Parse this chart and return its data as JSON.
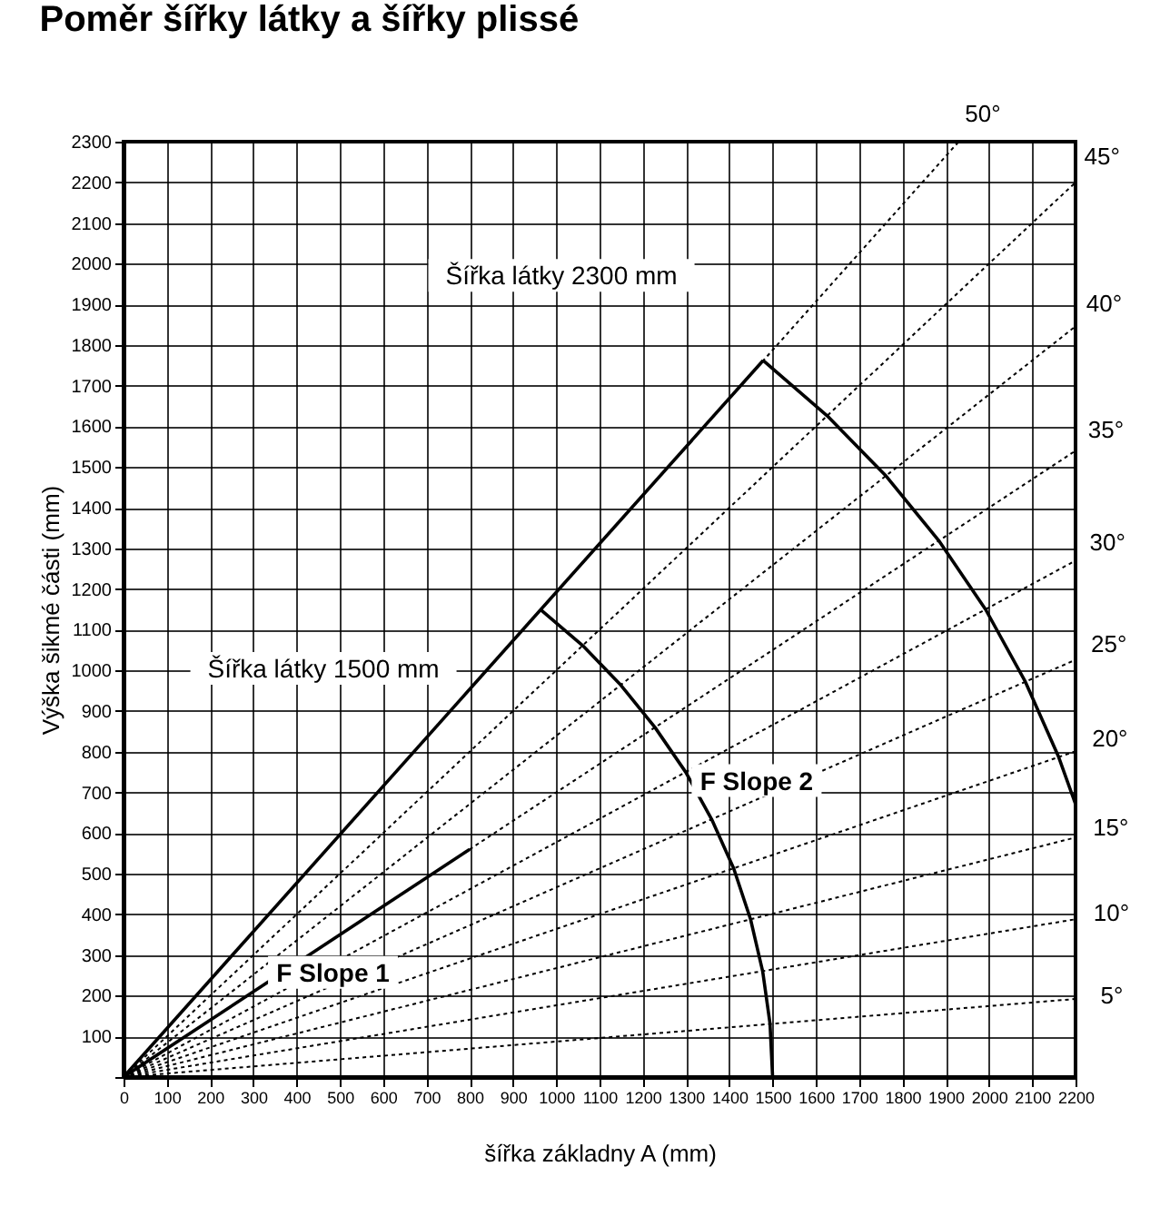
{
  "chart_data": {
    "type": "line",
    "title": "Poměr šířky látky a šířky plissé",
    "xlabel": "šířka základny A (mm)",
    "ylabel": "Výška šikmé části  (mm)",
    "xlim": [
      0,
      2200
    ],
    "ylim": [
      0,
      2300
    ],
    "xticks": [
      0,
      100,
      200,
      300,
      400,
      500,
      600,
      700,
      800,
      900,
      1000,
      1100,
      1200,
      1300,
      1400,
      1500,
      1600,
      1700,
      1800,
      1900,
      2000,
      2100,
      2200
    ],
    "yticks": [
      {
        "value": 0,
        "label": null
      },
      100,
      200,
      300,
      400,
      500,
      600,
      700,
      800,
      900,
      1000,
      1100,
      1200,
      1300,
      1400,
      1500,
      1600,
      1700,
      1800,
      1900,
      2000,
      2100,
      2200,
      2300
    ],
    "grid": true,
    "marker": "none",
    "series": [
      {
        "name": "5°",
        "color": "#000000",
        "line_style": "dotted",
        "x": [
          0,
          2200
        ],
        "values": [
          0,
          192
        ]
      },
      {
        "name": "10°",
        "color": "#000000",
        "line_style": "dotted",
        "x": [
          0,
          2200
        ],
        "values": [
          0,
          388
        ]
      },
      {
        "name": "15°",
        "color": "#000000",
        "line_style": "dotted",
        "x": [
          0,
          2200
        ],
        "values": [
          0,
          589
        ]
      },
      {
        "name": "20°",
        "color": "#000000",
        "line_style": "dotted",
        "x": [
          0,
          2200
        ],
        "values": [
          0,
          801
        ]
      },
      {
        "name": "25°",
        "color": "#000000",
        "line_style": "dotted",
        "x": [
          0,
          2200
        ],
        "values": [
          0,
          1026
        ]
      },
      {
        "name": "30°",
        "color": "#000000",
        "line_style": "dotted",
        "x": [
          0,
          2200
        ],
        "values": [
          0,
          1270
        ]
      },
      {
        "name": "35°",
        "color": "#000000",
        "line_style": "dotted",
        "x": [
          0,
          2200
        ],
        "values": [
          0,
          1540
        ]
      },
      {
        "name": "40°",
        "color": "#000000",
        "line_style": "dotted",
        "x": [
          0,
          2200
        ],
        "values": [
          0,
          1846
        ]
      },
      {
        "name": "45°",
        "color": "#000000",
        "line_style": "dotted",
        "x": [
          0,
          2200
        ],
        "values": [
          0,
          2200
        ]
      },
      {
        "name": "50°",
        "color": "#000000",
        "line_style": "dotted",
        "x": [
          0,
          1930
        ],
        "values": [
          0,
          2300
        ]
      },
      {
        "color": "#000000",
        "line_style": "solid",
        "x": [
          0,
          1478
        ],
        "values": [
          0,
          1762
        ]
      },
      {
        "color": "#000000",
        "line_style": "solid",
        "x": [
          0,
          800
        ],
        "values": [
          0,
          560
        ]
      },
      {
        "color": "#000000",
        "line_style": "solid",
        "x": [
          964,
          1061,
          1149,
          1228,
          1299,
          1359,
          1410,
          1449,
          1477,
          1494,
          1500
        ],
        "values": [
          1149,
          1061,
          964,
          860,
          750,
          634,
          513,
          388,
          260,
          131,
          0
        ]
      },
      {
        "color": "#000000",
        "line_style": "solid",
        "x": [
          1478,
          1626,
          1762,
          1884,
          1992,
          2084,
          2161,
          2200
        ],
        "values": [
          1762,
          1626,
          1478,
          1319,
          1150,
          972,
          787,
          671
        ]
      }
    ],
    "annotations": [
      "Šířka látky 2300 mm",
      "Šířka látky 1500 mm",
      "F Slope 1",
      "F Slope 2"
    ]
  }
}
